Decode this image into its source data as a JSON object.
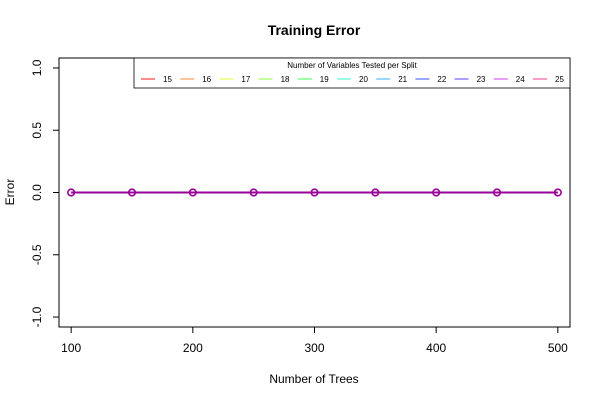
{
  "chart_data": {
    "type": "line",
    "title": "Training Error",
    "xlabel": "Number of Trees",
    "ylabel": "Error",
    "x": [
      100,
      150,
      200,
      250,
      300,
      350,
      400,
      450,
      500
    ],
    "xlim": [
      90,
      510
    ],
    "ylim": [
      -1.08,
      1.08
    ],
    "x_ticks": [
      100,
      200,
      300,
      400,
      500
    ],
    "x_tick_labels": [
      "100",
      "200",
      "300",
      "400",
      "500"
    ],
    "y_ticks": [
      -1.0,
      -0.5,
      0.0,
      0.5,
      1.0
    ],
    "y_tick_labels": [
      "-1.0",
      "-0.5",
      "0.0",
      "0.5",
      "1.0"
    ],
    "grid": false,
    "legend": {
      "title": "Number of Variables Tested per Split",
      "placement": "top-right",
      "columns": 11
    },
    "series": [
      {
        "name": "15",
        "color": "#ff4d4d",
        "values": [
          0,
          0,
          0,
          0,
          0,
          0,
          0,
          0,
          0
        ]
      },
      {
        "name": "16",
        "color": "#ffa366",
        "values": [
          0,
          0,
          0,
          0,
          0,
          0,
          0,
          0,
          0
        ]
      },
      {
        "name": "17",
        "color": "#e8ff66",
        "values": [
          0,
          0,
          0,
          0,
          0,
          0,
          0,
          0,
          0
        ]
      },
      {
        "name": "18",
        "color": "#a3ff66",
        "values": [
          0,
          0,
          0,
          0,
          0,
          0,
          0,
          0,
          0
        ]
      },
      {
        "name": "19",
        "color": "#66ff7a",
        "values": [
          0,
          0,
          0,
          0,
          0,
          0,
          0,
          0,
          0
        ]
      },
      {
        "name": "20",
        "color": "#66ffd1",
        "values": [
          0,
          0,
          0,
          0,
          0,
          0,
          0,
          0,
          0
        ]
      },
      {
        "name": "21",
        "color": "#66c4ff",
        "values": [
          0,
          0,
          0,
          0,
          0,
          0,
          0,
          0,
          0
        ]
      },
      {
        "name": "22",
        "color": "#667aff",
        "values": [
          0,
          0,
          0,
          0,
          0,
          0,
          0,
          0,
          0
        ]
      },
      {
        "name": "23",
        "color": "#8a66ff",
        "values": [
          0,
          0,
          0,
          0,
          0,
          0,
          0,
          0,
          0
        ]
      },
      {
        "name": "24",
        "color": "#e066ff",
        "values": [
          0,
          0,
          0,
          0,
          0,
          0,
          0,
          0,
          0
        ]
      },
      {
        "name": "25",
        "color": "#ff66b0",
        "values": [
          0,
          0,
          0,
          0,
          0,
          0,
          0,
          0,
          0
        ]
      }
    ],
    "overlay_color": "#990099"
  }
}
